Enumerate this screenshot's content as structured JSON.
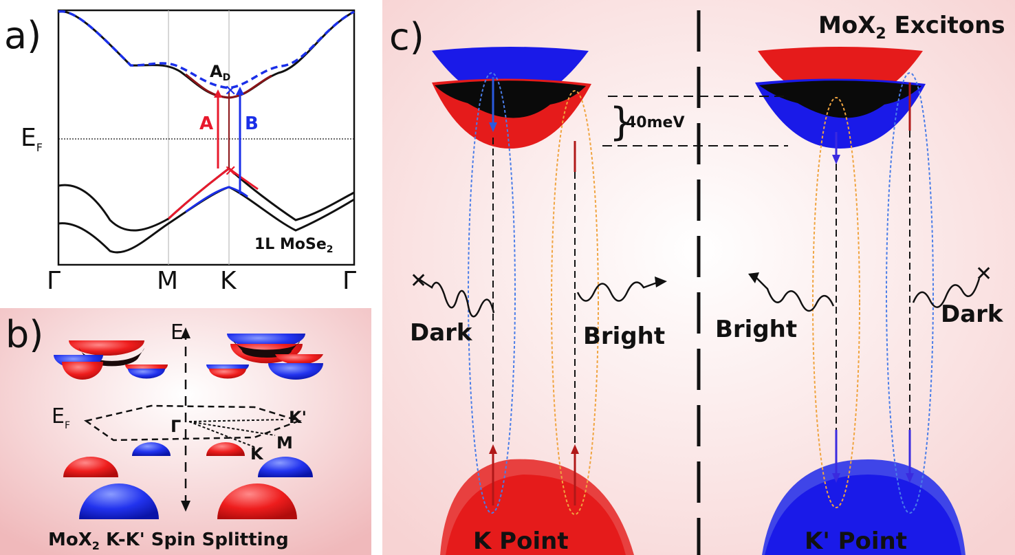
{
  "panel_a": {
    "label": "a)",
    "ticks": [
      "Γ",
      "M",
      "K",
      "Γ"
    ],
    "ef_label": "E",
    "ef_sub": "F",
    "ad_label": "A",
    "ad_sub": "D",
    "a_label": "A",
    "b_label": "B",
    "material": "1L MoSe",
    "material_sub": "2",
    "colors": {
      "spin_up": "#e8192c",
      "spin_down": "#1a2fe8",
      "dark_red": "#8a1418"
    }
  },
  "panel_b": {
    "label": "b)",
    "e_label": "E",
    "ef_label": "E",
    "ef_sub": "F",
    "gamma_label": "Γ",
    "kprime_label": "K'",
    "m_label": "M",
    "k_label": "K",
    "caption_pre": "MoX",
    "caption_sub": "2",
    "caption_post": " K-K' Spin Splitting"
  },
  "panel_c": {
    "label": "c)",
    "title_pre": "MoX",
    "title_sub": "2",
    "title_post": " Excitons",
    "gap_label": "40meV",
    "dark_left": "Dark",
    "bright_left": "Bright",
    "bright_right": "Bright",
    "dark_right": "Dark",
    "k_point": "K Point",
    "kprime_point": "K' Point"
  }
}
